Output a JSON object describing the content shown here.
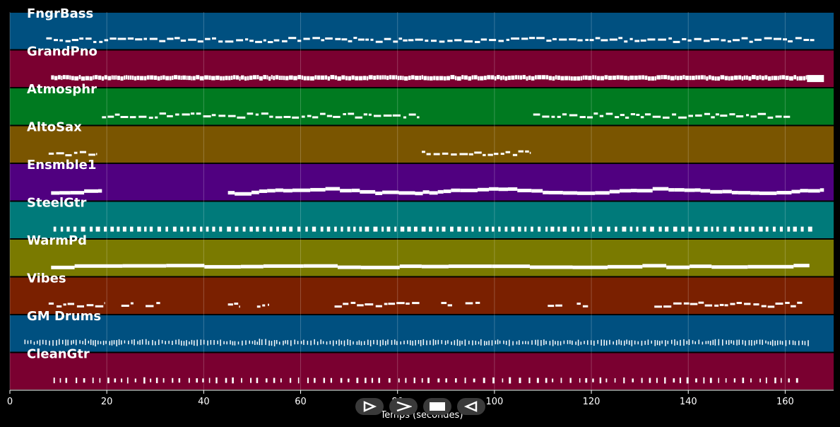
{
  "chart_data": {
    "type": "piano-roll",
    "xlabel": "Temps (secondes)",
    "xlim": [
      0,
      170
    ],
    "xticks": [
      0,
      20,
      40,
      60,
      80,
      100,
      120,
      140,
      160
    ],
    "grid": true,
    "tracks": [
      {
        "name": "FngrBass",
        "color": "#005080",
        "segments": [
          [
            7.5,
            166
          ]
        ],
        "style": "dash"
      },
      {
        "name": "GrandPno",
        "color": "#7a0030",
        "segments": [
          [
            8.5,
            164.5
          ],
          [
            164.5,
            168
          ]
        ],
        "style": "dense"
      },
      {
        "name": "Atmosphr",
        "color": "#007a20",
        "segments": [
          [
            19,
            84.5
          ],
          [
            108,
            161
          ]
        ],
        "style": "dash"
      },
      {
        "name": "AltoSax",
        "color": "#7a5500",
        "segments": [
          [
            8,
            18
          ],
          [
            85,
            107.5
          ]
        ],
        "style": "dash"
      },
      {
        "name": "Ensmble1",
        "color": "#500080",
        "segments": [
          [
            8.5,
            19
          ],
          [
            45,
            168
          ]
        ],
        "style": "thick"
      },
      {
        "name": "SteelGtr",
        "color": "#007a7a",
        "segments": [
          [
            9,
            166
          ]
        ],
        "style": "blocks"
      },
      {
        "name": "WarmPd",
        "color": "#7a7a00",
        "segments": [
          [
            8.5,
            165
          ]
        ],
        "style": "solid"
      },
      {
        "name": "Vibes",
        "color": "#7a2000",
        "segments": [
          [
            8,
            19.5
          ],
          [
            23,
            25.5
          ],
          [
            28,
            31
          ],
          [
            45,
            47.5
          ],
          [
            51,
            53.5
          ],
          [
            67,
            84.5
          ],
          [
            89,
            91.5
          ],
          [
            94,
            97
          ],
          [
            111,
            114
          ],
          [
            117,
            119.5
          ],
          [
            133,
            163.5
          ]
        ],
        "style": "dash"
      },
      {
        "name": "GM Drums",
        "color": "#005080",
        "segments": [
          [
            3,
            165
          ]
        ],
        "style": "drums"
      },
      {
        "name": "CleanGtr",
        "color": "#7a0030",
        "segments": [
          [
            9,
            163
          ]
        ],
        "style": "ticks"
      }
    ]
  },
  "controls": {
    "play_icon": "play-outline-icon",
    "forward_icon": "fast-forward-icon",
    "stop_icon": "stop-icon",
    "back_icon": "rewind-icon"
  }
}
